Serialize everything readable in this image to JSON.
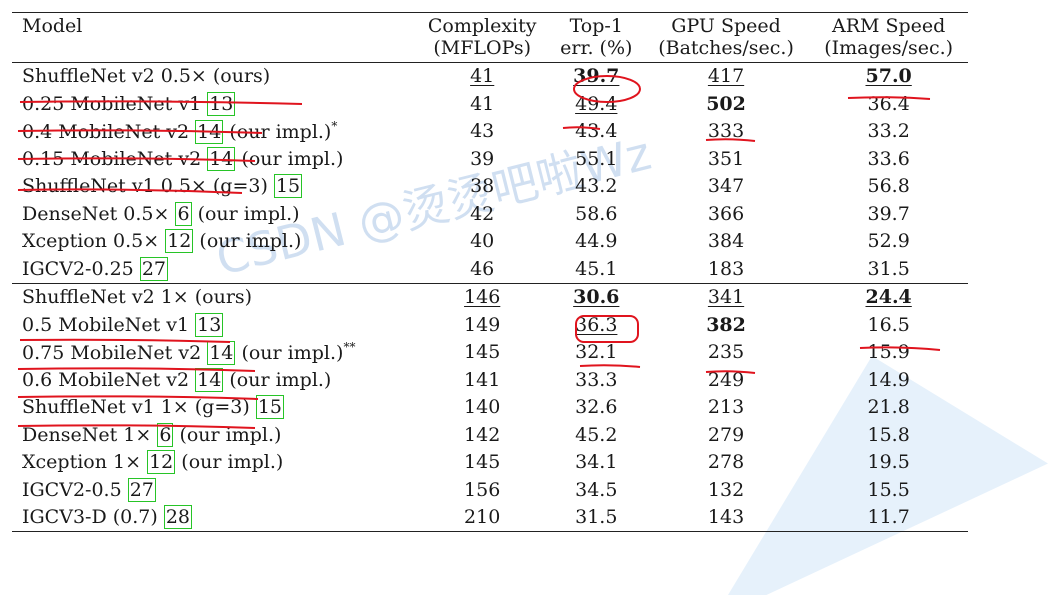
{
  "watermark": "CSDN @烫烫吧啦Wz",
  "headers": {
    "model": "Model",
    "complexity_1": "Complexity",
    "complexity_2": "(MFLOPs)",
    "top1_1": "Top-1",
    "top1_2": "err. (%)",
    "gpu_1": "GPU Speed",
    "gpu_2": "(Batches/sec.)",
    "arm_1": "ARM Speed",
    "arm_2": "(Images/sec.)"
  },
  "group1": [
    {
      "model": "ShuffleNet v2 0.5× (ours)",
      "complexity": "41",
      "top1": "39.7",
      "gpu": "417",
      "arm": "57.0"
    },
    {
      "model": "0.25 MobileNet v1",
      "ref": "13",
      "complexity": "41",
      "top1": "49.4",
      "gpu": "502",
      "arm": "36.4"
    },
    {
      "model": "0.4 MobileNet v2",
      "ref": "14",
      "suffix": " (our impl.)",
      "sup": "*",
      "complexity": "43",
      "top1": "43.4",
      "gpu": "333",
      "arm": "33.2"
    },
    {
      "model": "0.15 MobileNet v2",
      "ref": "14",
      "suffix": " (our impl.)",
      "complexity": "39",
      "top1": "55.1",
      "gpu": "351",
      "arm": "33.6"
    },
    {
      "model": "ShuffleNet v1 0.5× (g=3)",
      "ref": "15",
      "complexity": "38",
      "top1": "43.2",
      "gpu": "347",
      "arm": "56.8"
    },
    {
      "model": "DenseNet 0.5×",
      "ref": "6",
      "suffix": " (our impl.)",
      "complexity": "42",
      "top1": "58.6",
      "gpu": "366",
      "arm": "39.7"
    },
    {
      "model": "Xception 0.5×",
      "ref": "12",
      "suffix": " (our impl.)",
      "complexity": "40",
      "top1": "44.9",
      "gpu": "384",
      "arm": "52.9"
    },
    {
      "model": "IGCV2-0.25",
      "ref": "27",
      "complexity": "46",
      "top1": "45.1",
      "gpu": "183",
      "arm": "31.5"
    }
  ],
  "group2": [
    {
      "model": "ShuffleNet v2 1× (ours)",
      "complexity": "146",
      "top1": "30.6",
      "gpu": "341",
      "arm": "24.4"
    },
    {
      "model": "0.5 MobileNet v1",
      "ref": "13",
      "complexity": "149",
      "top1": "36.3",
      "gpu": "382",
      "arm": "16.5"
    },
    {
      "model": "0.75 MobileNet v2",
      "ref": "14",
      "suffix": " (our impl.)",
      "sup": "**",
      "complexity": "145",
      "top1": "32.1",
      "gpu": "235",
      "arm": "15.9"
    },
    {
      "model": "0.6 MobileNet v2",
      "ref": "14",
      "suffix": " (our impl.)",
      "complexity": "141",
      "top1": "33.3",
      "gpu": "249",
      "arm": "14.9"
    },
    {
      "model": "ShuffleNet v1 1× (g=3)",
      "ref": "15",
      "complexity": "140",
      "top1": "32.6",
      "gpu": "213",
      "arm": "21.8"
    },
    {
      "model": "DenseNet 1×",
      "ref": "6",
      "suffix": " (our impl.)",
      "complexity": "142",
      "top1": "45.2",
      "gpu": "279",
      "arm": "15.8"
    },
    {
      "model": "Xception 1×",
      "ref": "12",
      "suffix": " (our impl.)",
      "complexity": "145",
      "top1": "34.1",
      "gpu": "278",
      "arm": "19.5"
    },
    {
      "model": "IGCV2-0.5",
      "ref": "27",
      "complexity": "156",
      "top1": "34.5",
      "gpu": "132",
      "arm": "15.5"
    },
    {
      "model": "IGCV3-D (0.7)",
      "ref": "28",
      "complexity": "210",
      "top1": "31.5",
      "gpu": "143",
      "arm": "11.7"
    }
  ]
}
